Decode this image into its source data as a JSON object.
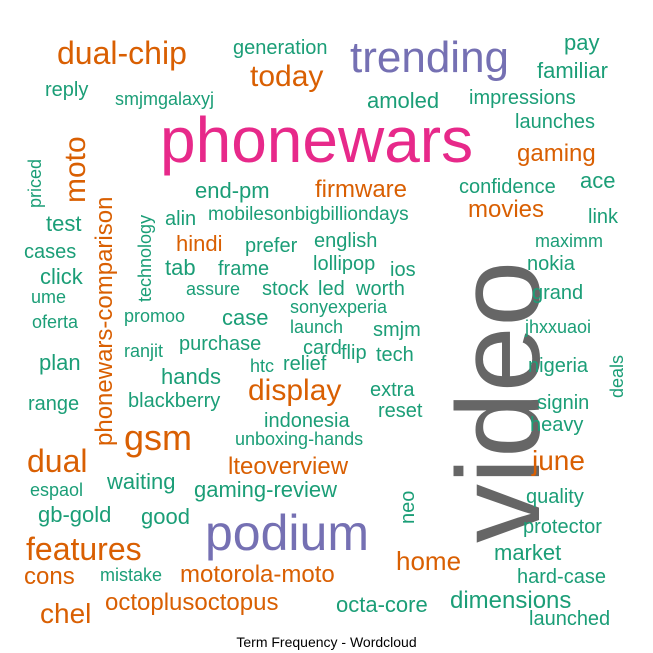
{
  "caption": "Term Frequency - Wordcloud",
  "colors": {
    "teal": "#1b9e77",
    "orange": "#d95f02",
    "purple": "#7570b3",
    "pink": "#e7298a",
    "gray": "#666666"
  },
  "words": {
    "video": "video",
    "phonewars": "phonewars",
    "trending": "trending",
    "podium": "podium",
    "dual_chip": "dual-chip",
    "today": "today",
    "generation": "generation",
    "pay": "pay",
    "familiar": "familiar",
    "reply": "reply",
    "smjmgalaxyj": "smjmgalaxyj",
    "amoled": "amoled",
    "impressions": "impressions",
    "launches": "launches",
    "gaming": "gaming",
    "ace": "ace",
    "moto": "moto",
    "phonewars_comparison": "phonewars-comparison",
    "priced": "priced",
    "technology": "technology",
    "end_pm": "end-pm",
    "firmware": "firmware",
    "confidence": "confidence",
    "test": "test",
    "alin": "alin",
    "mobilesonbigbilliondays": "mobilesonbigbilliondays",
    "movies": "movies",
    "link": "link",
    "cases": "cases",
    "hindi": "hindi",
    "prefer": "prefer",
    "english": "english",
    "maximm": "maximm",
    "click": "click",
    "tab": "tab",
    "frame": "frame",
    "lollipop": "lollipop",
    "ios": "ios",
    "nokia": "nokia",
    "ume": "ume",
    "assure": "assure",
    "stock": "stock",
    "led": "led",
    "worth": "worth",
    "grand": "grand",
    "oferta": "oferta",
    "promoo": "promoo",
    "case": "case",
    "sonyexperia": "sonyexperia",
    "jhxxuaoi": "jhxxuaoi",
    "launch": "launch",
    "smjm": "smjm",
    "ranjit": "ranjit",
    "purchase": "purchase",
    "card": "card",
    "plan": "plan",
    "htc": "htc",
    "relief": "relief",
    "flip": "flip",
    "tech": "tech",
    "nigeria": "nigeria",
    "deals": "deals",
    "hands": "hands",
    "display": "display",
    "extra": "extra",
    "range": "range",
    "blackberry": "blackberry",
    "reset": "reset",
    "signin": "signin",
    "indonesia": "indonesia",
    "heavy": "heavy",
    "gsm": "gsm",
    "unboxing_hands": "unboxing-hands",
    "dual": "dual",
    "june": "june",
    "lteoverview": "lteoverview",
    "espaol": "espaol",
    "waiting": "waiting",
    "gaming_review": "gaming-review",
    "quality": "quality",
    "gb_gold": "gb-gold",
    "good": "good",
    "neo": "neo",
    "protector": "protector",
    "features": "features",
    "market": "market",
    "home": "home",
    "cons": "cons",
    "mistake": "mistake",
    "motorola_moto": "motorola-moto",
    "hard_case": "hard-case",
    "chel": "chel",
    "octoplusoctopus": "octoplusoctopus",
    "octa_core": "octa-core",
    "dimensions": "dimensions",
    "launched": "launched"
  }
}
